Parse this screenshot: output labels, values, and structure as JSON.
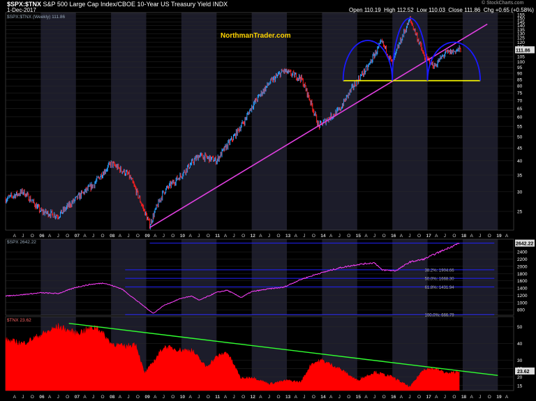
{
  "header": {
    "symbol": "$SPX:$TNX",
    "description": "S&P 500 Large Cap Index/CBOE 10-Year US Treasury Yield INDX",
    "date": "1-Dec-2017",
    "open_label": "Open",
    "open": "110.19",
    "high_label": "High",
    "high": "112.52",
    "low_label": "Low",
    "low": "110.03",
    "close_label": "Close",
    "close": "111.86",
    "chg_label": "Chg",
    "chg": "+0.65 (+0.58%)",
    "watermark": "© StockCharts.com"
  },
  "brand": "NorthmanTrader.com",
  "chart_data": [
    {
      "type": "line",
      "title": "$SPX:$TNX (Weekly) 111.86",
      "scale": "log",
      "ylim": [
        21,
        158
      ],
      "y_ticks": [
        25,
        30,
        35,
        40,
        45,
        50,
        55,
        60,
        65,
        70,
        75,
        80,
        85,
        90,
        95,
        100,
        105,
        110,
        115,
        120,
        125,
        130,
        135,
        140,
        145,
        150,
        155
      ],
      "y_tick_labels_shown": [
        25,
        30,
        35,
        40,
        45,
        50,
        55,
        60,
        65,
        70,
        75,
        80,
        85,
        90,
        95,
        100,
        105,
        110,
        115,
        120,
        125,
        130,
        135,
        140,
        145,
        150,
        155
      ],
      "last_value_label": "111.86",
      "x_axis_labels": [
        "A",
        "J",
        "O",
        "06",
        "A",
        "J",
        "O",
        "07",
        "A",
        "J",
        "O",
        "08",
        "A",
        "J",
        "O",
        "09",
        "A",
        "J",
        "O",
        "10",
        "A",
        "J",
        "O",
        "11",
        "A",
        "J",
        "O",
        "12",
        "A",
        "J",
        "O",
        "13",
        "A",
        "J",
        "O",
        "14",
        "A",
        "J",
        "O",
        "15",
        "A",
        "J",
        "O",
        "16",
        "A",
        "J",
        "O",
        "17",
        "A",
        "J",
        "O",
        "18",
        "A",
        "J",
        "O",
        "19",
        "A"
      ],
      "series": [
        {
          "x": [
            2005.0,
            2005.5,
            2006.0,
            2006.5,
            2007.0,
            2007.5,
            2008.0,
            2008.5,
            2008.9,
            2009.1,
            2009.5,
            2010.0,
            2010.5,
            2011.0,
            2011.5,
            2011.8,
            2012.0,
            2012.5,
            2012.9,
            2013.4,
            2013.9,
            2014.5,
            2014.9,
            2015.3,
            2015.7,
            2016.0,
            2016.5,
            2016.9,
            2017.2,
            2017.5,
            2017.9
          ],
          "y": [
            28,
            30,
            25,
            24,
            28,
            32,
            39,
            35,
            26,
            22,
            30,
            35,
            42,
            40,
            50,
            58,
            66,
            82,
            92,
            86,
            55,
            64,
            80,
            95,
            120,
            98,
            148,
            105,
            96,
            108,
            112
          ]
        }
      ],
      "annotations": [
        {
          "kind": "trendline",
          "color": "#e040e0",
          "from": [
            2009.1,
            21.5
          ],
          "to": [
            2018.7,
            142
          ]
        },
        {
          "kind": "horizontal",
          "color": "#ffff00",
          "y": 84,
          "x_from": 2014.6,
          "x_to": 2018.5
        },
        {
          "kind": "arc",
          "color": "#1a1aff",
          "x_from": 2014.6,
          "x_to": 2016.0,
          "y_base": 84,
          "y_top": 122
        },
        {
          "kind": "arc",
          "color": "#1a1aff",
          "x_from": 2016.0,
          "x_to": 2017.0,
          "y_base": 84,
          "y_top": 150
        },
        {
          "kind": "arc",
          "color": "#1a1aff",
          "x_from": 2017.0,
          "x_to": 2018.5,
          "y_base": 84,
          "y_top": 120
        }
      ]
    },
    {
      "type": "line",
      "title": "$SPX 2642.22",
      "ylim": [
        650,
        2750
      ],
      "y_ticks": [
        800,
        1000,
        1200,
        1400,
        1600,
        1800,
        2000,
        2200,
        2400
      ],
      "last_value_label": "2642.22",
      "series": [
        {
          "name": "$SPX",
          "color": "#ff40ff",
          "x": [
            2005.0,
            2005.5,
            2006.0,
            2006.5,
            2007.0,
            2007.4,
            2007.8,
            2008.3,
            2008.8,
            2009.2,
            2009.5,
            2010.0,
            2010.3,
            2010.5,
            2011.0,
            2011.3,
            2011.7,
            2012.0,
            2012.5,
            2012.9,
            2013.4,
            2013.9,
            2014.5,
            2015.0,
            2015.5,
            2015.7,
            2016.1,
            2016.5,
            2016.9,
            2017.3,
            2017.9
          ],
          "y": [
            1180,
            1220,
            1270,
            1250,
            1420,
            1500,
            1540,
            1380,
            1000,
            700,
            920,
            1120,
            1180,
            1060,
            1280,
            1340,
            1140,
            1300,
            1380,
            1420,
            1640,
            1800,
            1960,
            2050,
            2100,
            1900,
            1880,
            2120,
            2200,
            2380,
            2642
          ]
        }
      ],
      "fib_levels": [
        {
          "label": "38.2%: 1904.66",
          "value": 1904.66
        },
        {
          "label": "50.0%: 1668.30",
          "value": 1668.3
        },
        {
          "label": "61.8%: 1431.94",
          "value": 1431.94
        },
        {
          "label": "100.0%: 666.79",
          "value": 666.79
        }
      ],
      "top_level": 2642.22
    },
    {
      "type": "area",
      "title": "$TNX 23.62",
      "ylim": [
        12,
        56
      ],
      "y_ticks": [
        15,
        20,
        25,
        30,
        40,
        50
      ],
      "last_value_label": "23.62",
      "series": [
        {
          "name": "$TNX",
          "color": "#ff0000",
          "x": [
            2005.0,
            2005.5,
            2006.0,
            2006.5,
            2007.0,
            2007.3,
            2007.6,
            2008.0,
            2008.4,
            2008.7,
            2008.95,
            2009.1,
            2009.5,
            2010.0,
            2010.3,
            2010.7,
            2011.0,
            2011.3,
            2011.7,
            2012.0,
            2012.5,
            2013.0,
            2013.4,
            2013.7,
            2014.0,
            2014.5,
            2015.0,
            2015.5,
            2016.0,
            2016.5,
            2016.9,
            2017.2,
            2017.6,
            2017.9
          ],
          "y": [
            42,
            40,
            45,
            50,
            46,
            48,
            50,
            40,
            38,
            40,
            22,
            26,
            38,
            36,
            36,
            26,
            32,
            35,
            19,
            20,
            16,
            18,
            17,
            28,
            30,
            25,
            18,
            23,
            20,
            14,
            25,
            25,
            22,
            23.6
          ]
        }
      ],
      "annotations": [
        {
          "kind": "trendline",
          "color": "#30ff30",
          "from": [
            2006.8,
            52
          ],
          "to": [
            2019.0,
            21
          ]
        }
      ]
    }
  ]
}
